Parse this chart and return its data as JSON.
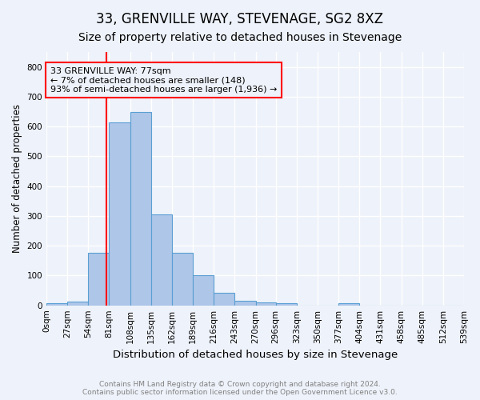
{
  "title1": "33, GRENVILLE WAY, STEVENAGE, SG2 8XZ",
  "title2": "Size of property relative to detached houses in Stevenage",
  "xlabel": "Distribution of detached houses by size in Stevenage",
  "ylabel": "Number of detached properties",
  "bin_edges": [
    0,
    27,
    54,
    81,
    108,
    135,
    162,
    189,
    216,
    243,
    270,
    296,
    323,
    350,
    377,
    404,
    431,
    458,
    485,
    512,
    539
  ],
  "bar_heights": [
    8,
    13,
    175,
    615,
    650,
    305,
    175,
    100,
    42,
    16,
    11,
    7,
    0,
    0,
    6,
    0,
    0,
    0,
    0,
    0
  ],
  "bar_color": "#aec6e8",
  "bar_edge_color": "#5a9fd4",
  "property_line_x": 77,
  "property_line_color": "red",
  "annotation_title": "33 GRENVILLE WAY: 77sqm",
  "annotation_line1": "← 7% of detached houses are smaller (148)",
  "annotation_line2": "93% of semi-detached houses are larger (1,936) →",
  "annotation_box_color": "red",
  "ylim": [
    0,
    850
  ],
  "yticks": [
    0,
    100,
    200,
    300,
    400,
    500,
    600,
    700,
    800
  ],
  "footer1": "Contains HM Land Registry data © Crown copyright and database right 2024.",
  "footer2": "Contains public sector information licensed under the Open Government Licence v3.0.",
  "bg_color": "#eef2fa",
  "grid_color": "white",
  "title1_fontsize": 12,
  "title2_fontsize": 10,
  "annotation_fontsize": 8
}
